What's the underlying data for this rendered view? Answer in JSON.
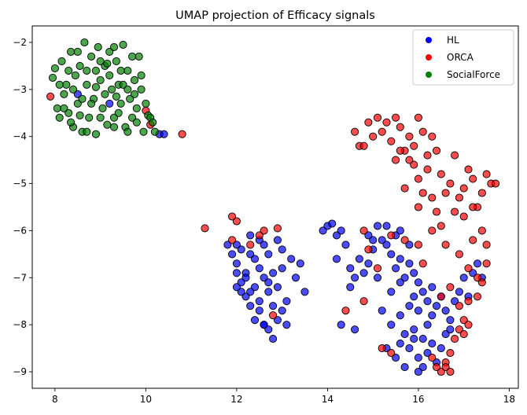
{
  "chart_data": {
    "type": "scatter",
    "title": "UMAP projection of Efficacy signals",
    "xlabel": "",
    "ylabel": "",
    "xlim": [
      7.5,
      18.2
    ],
    "ylim": [
      -9.35,
      -1.65
    ],
    "xticks": [
      8,
      10,
      12,
      14,
      16,
      18
    ],
    "yticks": [
      -2,
      -3,
      -4,
      -5,
      -6,
      -7,
      -8,
      -9
    ],
    "grid": false,
    "legend_position": "top-right",
    "series": [
      {
        "name": "HL",
        "color": "#0000ff",
        "points": [
          [
            8.5,
            -3.1
          ],
          [
            9.2,
            -3.3
          ],
          [
            10.3,
            -3.95
          ],
          [
            10.4,
            -3.95
          ],
          [
            11.8,
            -6.3
          ],
          [
            11.9,
            -6.5
          ],
          [
            12.0,
            -6.7
          ],
          [
            12.1,
            -6.4
          ],
          [
            12.2,
            -6.9
          ],
          [
            12.3,
            -6.5
          ],
          [
            12.1,
            -7.1
          ],
          [
            12.0,
            -6.9
          ],
          [
            12.4,
            -7.2
          ],
          [
            12.5,
            -6.8
          ],
          [
            12.6,
            -7.0
          ],
          [
            12.2,
            -7.4
          ],
          [
            12.3,
            -7.6
          ],
          [
            12.5,
            -7.5
          ],
          [
            12.7,
            -7.3
          ],
          [
            12.8,
            -7.6
          ],
          [
            12.4,
            -7.9
          ],
          [
            12.6,
            -8.0
          ],
          [
            12.7,
            -8.1
          ],
          [
            12.9,
            -7.9
          ],
          [
            13.0,
            -7.7
          ],
          [
            13.1,
            -7.5
          ],
          [
            12.8,
            -6.9
          ],
          [
            13.0,
            -6.8
          ],
          [
            13.2,
            -6.6
          ],
          [
            13.3,
            -7.0
          ],
          [
            12.9,
            -6.2
          ],
          [
            12.6,
            -6.3
          ],
          [
            12.3,
            -6.1
          ],
          [
            12.0,
            -6.3
          ],
          [
            13.4,
            -6.7
          ],
          [
            13.5,
            -7.3
          ],
          [
            12.2,
            -7.0
          ],
          [
            12.4,
            -6.6
          ],
          [
            12.7,
            -6.5
          ],
          [
            12.5,
            -7.7
          ],
          [
            12.1,
            -7.3
          ],
          [
            12.9,
            -7.2
          ],
          [
            13.1,
            -8.0
          ],
          [
            12.8,
            -8.3
          ],
          [
            12.6,
            -8.0
          ],
          [
            12.3,
            -7.3
          ],
          [
            12.0,
            -7.2
          ],
          [
            12.7,
            -7.1
          ],
          [
            13.0,
            -6.4
          ],
          [
            12.5,
            -6.2
          ],
          [
            13.9,
            -6.0
          ],
          [
            14.0,
            -5.9
          ],
          [
            14.1,
            -5.85
          ],
          [
            14.2,
            -6.1
          ],
          [
            14.3,
            -6.0
          ],
          [
            14.4,
            -6.3
          ],
          [
            14.2,
            -6.6
          ],
          [
            14.5,
            -6.8
          ],
          [
            14.7,
            -6.6
          ],
          [
            14.6,
            -7.0
          ],
          [
            14.8,
            -6.9
          ],
          [
            14.9,
            -6.7
          ],
          [
            15.0,
            -6.4
          ],
          [
            15.2,
            -6.2
          ],
          [
            15.3,
            -6.3
          ],
          [
            15.4,
            -6.5
          ],
          [
            15.5,
            -6.8
          ],
          [
            15.6,
            -6.6
          ],
          [
            15.7,
            -7.0
          ],
          [
            15.8,
            -6.7
          ],
          [
            15.9,
            -6.9
          ],
          [
            16.0,
            -7.1
          ],
          [
            16.1,
            -7.3
          ],
          [
            16.2,
            -7.5
          ],
          [
            16.3,
            -7.2
          ],
          [
            16.4,
            -7.6
          ],
          [
            16.5,
            -7.4
          ],
          [
            16.6,
            -7.7
          ],
          [
            16.7,
            -7.9
          ],
          [
            16.8,
            -7.5
          ],
          [
            16.9,
            -7.3
          ],
          [
            17.0,
            -7.0
          ],
          [
            17.1,
            -7.4
          ],
          [
            17.2,
            -6.9
          ],
          [
            17.3,
            -6.7
          ],
          [
            17.4,
            -7.0
          ],
          [
            15.1,
            -5.9
          ],
          [
            15.3,
            -5.9
          ],
          [
            15.5,
            -6.1
          ],
          [
            15.6,
            -6.0
          ],
          [
            15.0,
            -6.2
          ],
          [
            14.9,
            -6.1
          ],
          [
            15.8,
            -6.3
          ],
          [
            15.2,
            -7.7
          ],
          [
            15.4,
            -8.0
          ],
          [
            15.6,
            -7.8
          ],
          [
            15.7,
            -8.2
          ],
          [
            15.8,
            -8.5
          ],
          [
            15.9,
            -8.3
          ],
          [
            16.0,
            -8.7
          ],
          [
            16.1,
            -8.9
          ],
          [
            16.0,
            -9.0
          ],
          [
            16.2,
            -8.6
          ],
          [
            16.3,
            -8.4
          ],
          [
            16.4,
            -8.8
          ],
          [
            16.5,
            -8.5
          ],
          [
            16.6,
            -8.2
          ],
          [
            16.7,
            -8.1
          ],
          [
            15.5,
            -8.7
          ],
          [
            15.7,
            -8.9
          ],
          [
            15.9,
            -8.1
          ],
          [
            16.1,
            -8.3
          ],
          [
            15.3,
            -8.5
          ],
          [
            15.6,
            -8.4
          ],
          [
            16.2,
            -8.0
          ],
          [
            15.4,
            -7.3
          ],
          [
            15.6,
            -7.1
          ],
          [
            15.9,
            -7.4
          ],
          [
            16.3,
            -7.8
          ],
          [
            16.0,
            -7.7
          ],
          [
            15.8,
            -7.6
          ],
          [
            14.6,
            -8.1
          ],
          [
            14.3,
            -8.0
          ],
          [
            15.1,
            -7.0
          ],
          [
            14.5,
            -7.2
          ]
        ]
      },
      {
        "name": "ORCA",
        "color": "#ff0000",
        "points": [
          [
            7.9,
            -3.15
          ],
          [
            10.0,
            -3.45
          ],
          [
            10.1,
            -3.75
          ],
          [
            10.8,
            -3.95
          ],
          [
            11.3,
            -5.95
          ],
          [
            11.9,
            -5.7
          ],
          [
            12.0,
            -5.8
          ],
          [
            11.9,
            -6.2
          ],
          [
            12.3,
            -6.3
          ],
          [
            12.6,
            -6.0
          ],
          [
            12.9,
            -5.95
          ],
          [
            12.5,
            -6.1
          ],
          [
            12.8,
            -7.8
          ],
          [
            14.6,
            -3.9
          ],
          [
            14.7,
            -4.2
          ],
          [
            14.8,
            -4.2
          ],
          [
            14.9,
            -3.7
          ],
          [
            15.0,
            -4.0
          ],
          [
            15.1,
            -3.6
          ],
          [
            15.2,
            -3.9
          ],
          [
            15.3,
            -3.7
          ],
          [
            15.4,
            -4.1
          ],
          [
            15.5,
            -3.6
          ],
          [
            15.6,
            -3.8
          ],
          [
            15.7,
            -4.3
          ],
          [
            15.8,
            -4.0
          ],
          [
            15.9,
            -4.2
          ],
          [
            16.0,
            -3.6
          ],
          [
            16.1,
            -3.9
          ],
          [
            16.2,
            -4.4
          ],
          [
            16.3,
            -4.0
          ],
          [
            16.4,
            -4.3
          ],
          [
            16.5,
            -4.8
          ],
          [
            16.6,
            -5.2
          ],
          [
            16.7,
            -5.0
          ],
          [
            16.8,
            -5.6
          ],
          [
            16.9,
            -5.3
          ],
          [
            17.0,
            -5.1
          ],
          [
            17.1,
            -4.7
          ],
          [
            17.2,
            -4.9
          ],
          [
            17.3,
            -5.5
          ],
          [
            17.4,
            -5.2
          ],
          [
            17.5,
            -4.8
          ],
          [
            17.6,
            -5.0
          ],
          [
            17.7,
            -5.0
          ],
          [
            16.1,
            -5.2
          ],
          [
            16.0,
            -5.5
          ],
          [
            16.3,
            -5.3
          ],
          [
            15.9,
            -4.6
          ],
          [
            16.0,
            -4.9
          ],
          [
            15.7,
            -5.1
          ],
          [
            15.8,
            -4.5
          ],
          [
            16.2,
            -4.7
          ],
          [
            16.4,
            -5.6
          ],
          [
            16.5,
            -5.9
          ],
          [
            17.0,
            -5.7
          ],
          [
            17.2,
            -5.5
          ],
          [
            16.8,
            -4.4
          ],
          [
            15.5,
            -4.5
          ],
          [
            15.6,
            -4.3
          ],
          [
            14.8,
            -6.0
          ],
          [
            14.9,
            -6.4
          ],
          [
            15.4,
            -6.1
          ],
          [
            15.7,
            -6.2
          ],
          [
            16.0,
            -6.3
          ],
          [
            16.3,
            -6.0
          ],
          [
            16.6,
            -6.3
          ],
          [
            16.9,
            -6.5
          ],
          [
            17.2,
            -6.2
          ],
          [
            17.4,
            -6.0
          ],
          [
            17.5,
            -6.3
          ],
          [
            17.5,
            -6.7
          ],
          [
            17.4,
            -7.1
          ],
          [
            17.3,
            -7.4
          ],
          [
            17.1,
            -7.5
          ],
          [
            17.0,
            -7.9
          ],
          [
            16.9,
            -8.1
          ],
          [
            16.8,
            -8.3
          ],
          [
            16.7,
            -8.6
          ],
          [
            16.6,
            -8.8
          ],
          [
            16.5,
            -9.0
          ],
          [
            16.4,
            -8.9
          ],
          [
            16.3,
            -8.7
          ],
          [
            16.6,
            -8.9
          ],
          [
            16.7,
            -9.0
          ],
          [
            15.2,
            -8.5
          ],
          [
            15.4,
            -8.6
          ],
          [
            14.8,
            -7.5
          ],
          [
            14.4,
            -7.7
          ],
          [
            15.1,
            -6.8
          ],
          [
            16.1,
            -6.7
          ],
          [
            17.1,
            -6.8
          ],
          [
            17.3,
            -7.0
          ],
          [
            16.7,
            -7.2
          ],
          [
            16.9,
            -7.6
          ],
          [
            16.5,
            -7.4
          ],
          [
            17.1,
            -8.0
          ],
          [
            17.0,
            -8.2
          ]
        ]
      },
      {
        "name": "SocialForce",
        "color": "#008000",
        "points": [
          [
            7.95,
            -2.75
          ],
          [
            8.0,
            -2.55
          ],
          [
            8.05,
            -3.4
          ],
          [
            8.1,
            -3.6
          ],
          [
            8.15,
            -2.4
          ],
          [
            8.2,
            -3.1
          ],
          [
            8.25,
            -2.9
          ],
          [
            8.3,
            -3.5
          ],
          [
            8.35,
            -2.2
          ],
          [
            8.4,
            -3.8
          ],
          [
            8.45,
            -2.7
          ],
          [
            8.5,
            -3.3
          ],
          [
            8.55,
            -2.5
          ],
          [
            8.6,
            -3.9
          ],
          [
            8.65,
            -2.0
          ],
          [
            8.7,
            -2.9
          ],
          [
            8.75,
            -3.6
          ],
          [
            8.8,
            -2.3
          ],
          [
            8.85,
            -3.2
          ],
          [
            8.9,
            -3.95
          ],
          [
            8.95,
            -2.1
          ],
          [
            9.0,
            -2.8
          ],
          [
            9.05,
            -3.4
          ],
          [
            9.1,
            -2.5
          ],
          [
            9.15,
            -3.75
          ],
          [
            9.2,
            -2.2
          ],
          [
            9.25,
            -3.0
          ],
          [
            9.3,
            -3.6
          ],
          [
            9.35,
            -2.4
          ],
          [
            9.4,
            -2.9
          ],
          [
            9.45,
            -3.3
          ],
          [
            9.5,
            -2.05
          ],
          [
            9.55,
            -3.8
          ],
          [
            9.6,
            -2.6
          ],
          [
            9.65,
            -3.2
          ],
          [
            9.7,
            -3.6
          ],
          [
            9.75,
            -2.8
          ],
          [
            9.8,
            -3.4
          ],
          [
            9.85,
            -2.3
          ],
          [
            9.9,
            -3.0
          ],
          [
            9.95,
            -3.9
          ],
          [
            10.0,
            -3.3
          ],
          [
            10.05,
            -3.55
          ],
          [
            10.1,
            -3.6
          ],
          [
            10.15,
            -3.7
          ],
          [
            10.2,
            -3.9
          ],
          [
            8.3,
            -2.6
          ],
          [
            8.4,
            -3.0
          ],
          [
            8.6,
            -3.2
          ],
          [
            8.7,
            -2.6
          ],
          [
            8.8,
            -3.3
          ],
          [
            8.9,
            -2.6
          ],
          [
            9.0,
            -3.6
          ],
          [
            9.1,
            -3.1
          ],
          [
            9.2,
            -2.7
          ],
          [
            9.3,
            -2.1
          ],
          [
            9.4,
            -3.5
          ],
          [
            9.5,
            -2.9
          ],
          [
            9.6,
            -3.9
          ],
          [
            9.7,
            -2.3
          ],
          [
            9.8,
            -3.7
          ],
          [
            8.2,
            -3.4
          ],
          [
            8.1,
            -2.9
          ],
          [
            8.5,
            -2.2
          ],
          [
            8.7,
            -3.9
          ],
          [
            9.0,
            -2.4
          ],
          [
            9.3,
            -3.8
          ],
          [
            9.45,
            -2.6
          ],
          [
            9.6,
            -3.0
          ],
          [
            9.75,
            -3.1
          ],
          [
            9.9,
            -2.7
          ],
          [
            8.35,
            -3.7
          ],
          [
            8.55,
            -3.55
          ],
          [
            8.9,
            -2.95
          ],
          [
            9.15,
            -2.45
          ],
          [
            9.35,
            -3.15
          ]
        ]
      }
    ]
  }
}
